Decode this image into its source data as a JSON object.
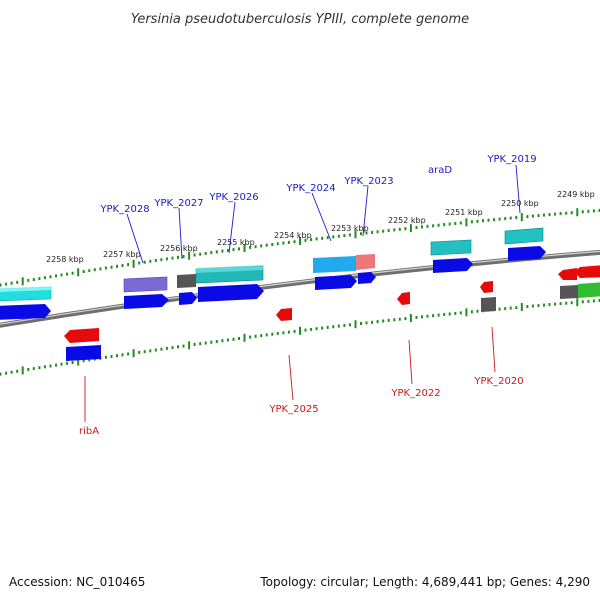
{
  "title": "Yersinia pseudotuberculosis YPIII, complete genome",
  "footer": {
    "accession": "Accession: NC_010465",
    "topology": "Topology: circular; Length: 4,689,441 bp; Genes: 4,290"
  },
  "scale_labels": [
    "2258 kbp",
    "2257 kbp",
    "2256 kbp",
    "2255 kbp",
    "2254 kbp",
    "2253 kbp",
    "2252 kbp",
    "2251 kbp",
    "2250 kbp",
    "2249 kbp"
  ],
  "gene_labels": [
    {
      "text": "YPK_2028",
      "strand": "forward"
    },
    {
      "text": "YPK_2027",
      "strand": "forward"
    },
    {
      "text": "YPK_2026",
      "strand": "forward"
    },
    {
      "text": "YPK_2024",
      "strand": "forward"
    },
    {
      "text": "YPK_2023",
      "strand": "forward"
    },
    {
      "text": "araD",
      "strand": "forward"
    },
    {
      "text": "YPK_2019",
      "strand": "forward"
    },
    {
      "text": "ribA",
      "strand": "reverse"
    },
    {
      "text": "YPK_2025",
      "strand": "reverse"
    },
    {
      "text": "YPK_2022",
      "strand": "reverse"
    },
    {
      "text": "YPK_2020",
      "strand": "reverse"
    }
  ],
  "colors": {
    "backbone": "#8a8a8a",
    "tick": "#228b22",
    "cds_forward": "#0a0ae6",
    "cds_reverse": "#e60a0a",
    "feature_cyan": "#22cccc",
    "feature_purple": "#7a6ad8",
    "feature_gray": "#555555",
    "feature_green": "#33bb33",
    "feature_pink": "#ee7777",
    "label_forward": "#1a1acc",
    "label_reverse": "#cc1a1a"
  }
}
